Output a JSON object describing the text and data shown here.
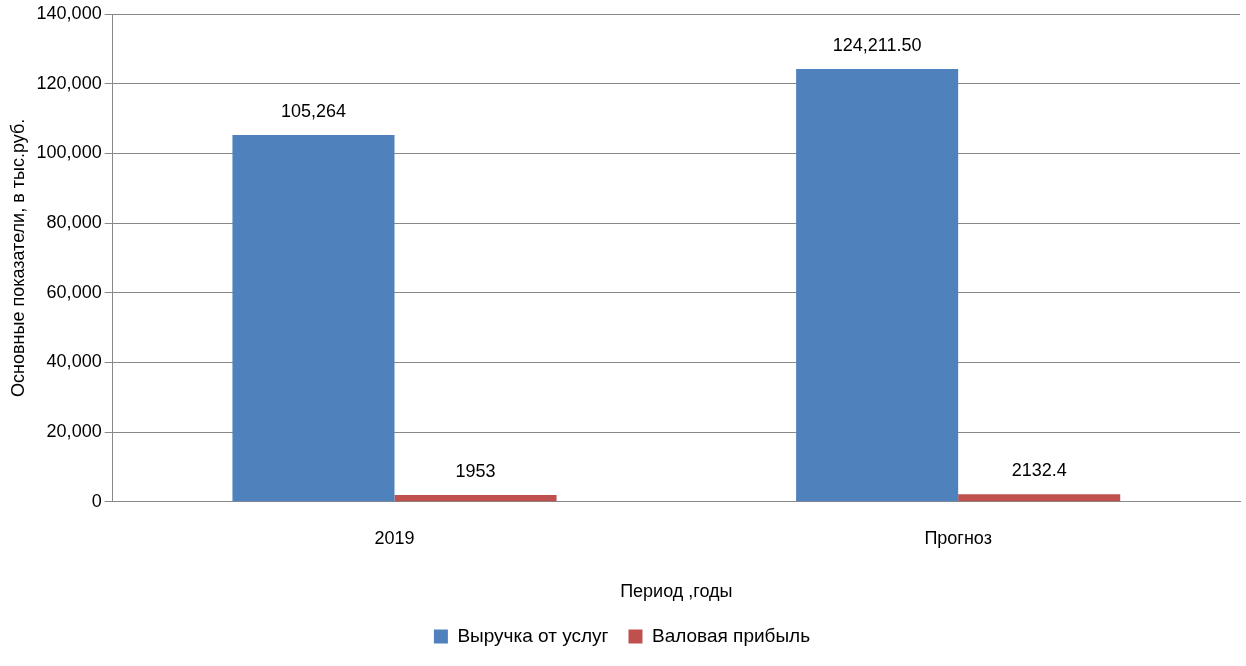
{
  "chart_data": {
    "type": "bar",
    "xlabel": "Период ,годы",
    "ylabel": "Основные показатели, в тыс.руб.",
    "categories": [
      "2019",
      "Прогноз"
    ],
    "series": [
      {
        "name": "Выручка от услуг",
        "color": "#4f81bd",
        "values": [
          105264,
          124211.5
        ],
        "value_labels": [
          "105,264",
          "124,211.50"
        ]
      },
      {
        "name": "Валовая прибыль",
        "color": "#c0504d",
        "values": [
          1953,
          2132.4
        ],
        "value_labels": [
          "1953",
          "2132.4"
        ]
      }
    ],
    "ylim": [
      0,
      140000
    ],
    "yticks": [
      {
        "value": 0,
        "label": "0"
      },
      {
        "value": 20000,
        "label": "20,000"
      },
      {
        "value": 40000,
        "label": "40,000"
      },
      {
        "value": 60000,
        "label": "60,000"
      },
      {
        "value": 80000,
        "label": "80,000"
      },
      {
        "value": 100000,
        "label": "100,000"
      },
      {
        "value": 120000,
        "label": "120,000"
      },
      {
        "value": 140000,
        "label": "140,000"
      }
    ],
    "grid": "y",
    "legend": "bottom"
  }
}
